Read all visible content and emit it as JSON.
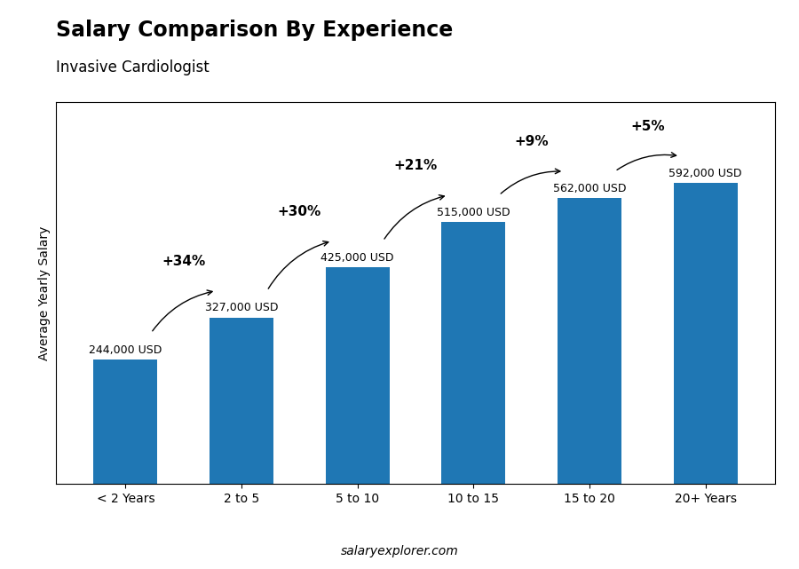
{
  "chart_data": {
    "type": "bar",
    "title": "Salary Comparison By Experience",
    "subtitle": "Invasive Cardiologist",
    "y_label": "Average Yearly Salary",
    "categories": [
      "< 2 Years",
      "2 to 5",
      "5 to 10",
      "10 to 15",
      "15 to 20",
      "20+ Years"
    ],
    "values": [
      244000,
      327000,
      425000,
      515000,
      562000,
      592000
    ],
    "value_labels": [
      "244,000 USD",
      "327,000 USD",
      "425,000 USD",
      "515,000 USD",
      "562,000 USD",
      "592,000 USD"
    ],
    "data_labels": true,
    "annotations": [
      "+34%",
      "+30%",
      "+21%",
      "+9%",
      "+5%"
    ],
    "footer": "salaryexplorer.com",
    "ylim": [
      0,
      750000
    ],
    "tick_labels": "x",
    "grid": false
  }
}
